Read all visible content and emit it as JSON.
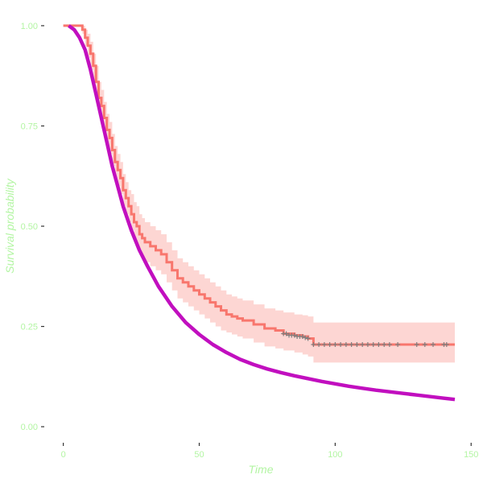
{
  "chart_data": {
    "type": "line",
    "title": "",
    "xlabel": "Time",
    "ylabel": "Survival probability",
    "xlim": [
      -7,
      152
    ],
    "ylim": [
      -0.04,
      1.04
    ],
    "x_ticks": [
      0,
      50,
      100,
      150
    ],
    "x_tick_labels": [
      "0",
      "50",
      "100",
      "150"
    ],
    "y_ticks": [
      0,
      0.25,
      0.5,
      0.75,
      1
    ],
    "y_tick_labels": [
      "0.00",
      "0.25",
      "0.50",
      "0.75",
      "1.00"
    ],
    "grid": false,
    "legend": "none",
    "colors": {
      "km_line": "#f8766d",
      "ci_band": "#f8766d",
      "parametric_line": "#c10fbf",
      "censor_marks": "#7f7f7f",
      "axis_text": "#b3f5a3"
    },
    "series": [
      {
        "kind": "step",
        "x": [
          0,
          7,
          8,
          9,
          10,
          11,
          12,
          13,
          14,
          15,
          16,
          17,
          18,
          19,
          20,
          21,
          22,
          23,
          24,
          25,
          26,
          27,
          28,
          29,
          30,
          32,
          34,
          36,
          38,
          40,
          42,
          44,
          46,
          48,
          50,
          52,
          54,
          56,
          58,
          60,
          62,
          64,
          66,
          70,
          74,
          78,
          81,
          85,
          88,
          90,
          92,
          144
        ],
        "y": [
          1.0,
          0.99,
          0.97,
          0.95,
          0.93,
          0.9,
          0.86,
          0.82,
          0.8,
          0.77,
          0.74,
          0.72,
          0.69,
          0.66,
          0.64,
          0.62,
          0.59,
          0.57,
          0.55,
          0.53,
          0.51,
          0.5,
          0.48,
          0.47,
          0.46,
          0.45,
          0.44,
          0.43,
          0.41,
          0.39,
          0.37,
          0.36,
          0.35,
          0.34,
          0.33,
          0.32,
          0.31,
          0.3,
          0.29,
          0.28,
          0.275,
          0.27,
          0.265,
          0.255,
          0.245,
          0.24,
          0.232,
          0.228,
          0.225,
          0.22,
          0.205,
          0.205
        ]
      },
      {
        "kind": "ci_band",
        "x": [
          0,
          7,
          8,
          9,
          10,
          11,
          12,
          13,
          14,
          15,
          16,
          17,
          18,
          19,
          20,
          21,
          22,
          23,
          24,
          25,
          26,
          27,
          28,
          29,
          30,
          32,
          34,
          36,
          38,
          40,
          42,
          44,
          46,
          48,
          50,
          52,
          54,
          56,
          58,
          60,
          62,
          64,
          66,
          70,
          74,
          78,
          81,
          85,
          88,
          90,
          92,
          144
        ],
        "upper": [
          1.0,
          1.0,
          0.99,
          0.98,
          0.96,
          0.93,
          0.9,
          0.86,
          0.84,
          0.81,
          0.78,
          0.76,
          0.73,
          0.7,
          0.68,
          0.66,
          0.63,
          0.61,
          0.59,
          0.58,
          0.56,
          0.55,
          0.53,
          0.52,
          0.51,
          0.5,
          0.49,
          0.48,
          0.46,
          0.44,
          0.42,
          0.41,
          0.4,
          0.39,
          0.38,
          0.37,
          0.36,
          0.35,
          0.34,
          0.33,
          0.325,
          0.32,
          0.315,
          0.305,
          0.295,
          0.29,
          0.285,
          0.28,
          0.278,
          0.275,
          0.26,
          0.26
        ],
        "lower": [
          1.0,
          0.98,
          0.95,
          0.92,
          0.89,
          0.86,
          0.82,
          0.78,
          0.76,
          0.73,
          0.7,
          0.68,
          0.65,
          0.62,
          0.6,
          0.58,
          0.55,
          0.53,
          0.51,
          0.49,
          0.47,
          0.45,
          0.43,
          0.42,
          0.41,
          0.4,
          0.39,
          0.38,
          0.36,
          0.34,
          0.32,
          0.31,
          0.3,
          0.29,
          0.28,
          0.27,
          0.26,
          0.25,
          0.24,
          0.235,
          0.23,
          0.225,
          0.22,
          0.21,
          0.2,
          0.195,
          0.19,
          0.185,
          0.18,
          0.175,
          0.16,
          0.16
        ]
      },
      {
        "kind": "censor",
        "x": [
          81,
          82,
          83,
          84,
          85,
          86,
          87,
          88,
          89,
          90,
          92,
          94,
          96,
          98,
          100,
          102,
          104,
          106,
          108,
          110,
          112,
          114,
          116,
          118,
          120,
          123,
          130,
          133,
          136,
          140,
          141
        ],
        "y": [
          0.232,
          0.232,
          0.228,
          0.228,
          0.228,
          0.225,
          0.225,
          0.225,
          0.222,
          0.22,
          0.205,
          0.205,
          0.205,
          0.205,
          0.205,
          0.205,
          0.205,
          0.205,
          0.205,
          0.205,
          0.205,
          0.205,
          0.205,
          0.205,
          0.205,
          0.205,
          0.205,
          0.205,
          0.205,
          0.205,
          0.205
        ]
      },
      {
        "kind": "smooth",
        "x": [
          2,
          4,
          6,
          8,
          10,
          12,
          14,
          16,
          18,
          20,
          22,
          25,
          28,
          31,
          35,
          40,
          45,
          50,
          55,
          60,
          65,
          70,
          75,
          80,
          85,
          90,
          95,
          100,
          105,
          110,
          115,
          120,
          125,
          130,
          135,
          140,
          144
        ],
        "y": [
          1.0,
          0.99,
          0.97,
          0.94,
          0.89,
          0.83,
          0.77,
          0.71,
          0.65,
          0.6,
          0.55,
          0.49,
          0.44,
          0.4,
          0.35,
          0.3,
          0.26,
          0.23,
          0.205,
          0.185,
          0.168,
          0.155,
          0.144,
          0.135,
          0.127,
          0.12,
          0.113,
          0.107,
          0.101,
          0.096,
          0.091,
          0.087,
          0.083,
          0.079,
          0.075,
          0.071,
          0.068
        ]
      }
    ]
  }
}
